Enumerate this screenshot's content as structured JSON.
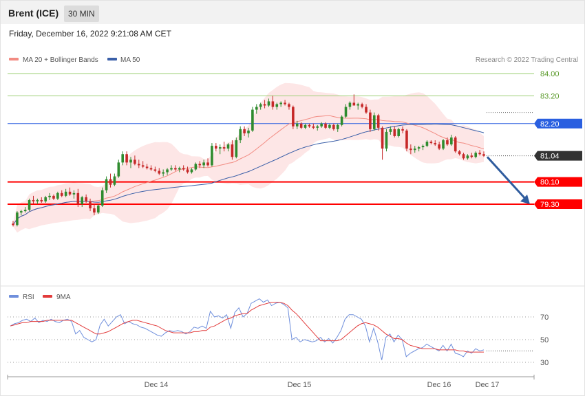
{
  "header": {
    "symbol": "Brent (ICE)",
    "timeframe": "30 MIN",
    "datetime": "Friday, December 16, 2022 9:21:08 AM CET"
  },
  "legend": {
    "ma20_bb": "MA 20 + Bollinger Bands",
    "ma50": "MA 50",
    "credit": "Research © 2022 Trading Central"
  },
  "rsi_legend": {
    "rsi": "RSI",
    "ma9": "9MA"
  },
  "colors": {
    "ma20": "#f28b82",
    "ma50": "#3a5fa8",
    "bb_fill": "#fde2e2",
    "up_candle": "#2e8b2e",
    "down_candle": "#c62828",
    "resistance_green": "#9bcf73",
    "pivot_blue": "#2a5fe0",
    "support_red": "#ff0000",
    "last_price": "#333333",
    "arrow": "#2f5c9e",
    "rsi": "#6f8fdc",
    "rsi_ma": "#e23b3b"
  },
  "chart_data": [
    {
      "type": "candlestick",
      "title": "",
      "ylim": [
        77.2,
        84.2
      ],
      "x_ticks": [
        "Dec 14",
        "Dec 15",
        "Dec 16",
        "Dec 17"
      ],
      "levels": [
        {
          "value": 84.0,
          "label": "84.00",
          "kind": "resistance"
        },
        {
          "value": 83.2,
          "label": "83.20",
          "kind": "resistance"
        },
        {
          "value": 82.2,
          "label": "82.20",
          "kind": "pivot"
        },
        {
          "value": 81.04,
          "label": "81.04",
          "kind": "last"
        },
        {
          "value": 80.1,
          "label": "80.10",
          "kind": "support"
        },
        {
          "value": 79.3,
          "label": "79.30",
          "kind": "support"
        }
      ],
      "forecast_arrow": {
        "from": 81.0,
        "to": 79.3,
        "direction": "down"
      },
      "ohlc": [
        [
          78.6,
          78.7,
          78.5,
          78.55
        ],
        [
          78.55,
          79.05,
          78.5,
          79.0
        ],
        [
          79.0,
          79.1,
          78.9,
          79.05
        ],
        [
          79.05,
          79.2,
          79.0,
          79.1
        ],
        [
          79.1,
          79.5,
          79.05,
          79.45
        ],
        [
          79.45,
          79.6,
          79.3,
          79.4
        ],
        [
          79.4,
          79.5,
          79.3,
          79.45
        ],
        [
          79.45,
          79.55,
          79.35,
          79.4
        ],
        [
          79.4,
          79.6,
          79.35,
          79.55
        ],
        [
          79.55,
          79.7,
          79.45,
          79.6
        ],
        [
          79.6,
          79.65,
          79.45,
          79.5
        ],
        [
          79.5,
          79.75,
          79.45,
          79.7
        ],
        [
          79.7,
          79.8,
          79.55,
          79.6
        ],
        [
          79.6,
          79.85,
          79.55,
          79.75
        ],
        [
          79.75,
          79.9,
          79.6,
          79.65
        ],
        [
          79.65,
          79.8,
          79.5,
          79.7
        ],
        [
          79.7,
          79.85,
          79.2,
          79.3
        ],
        [
          79.3,
          79.6,
          79.2,
          79.55
        ],
        [
          79.55,
          79.65,
          79.35,
          79.4
        ],
        [
          79.4,
          79.5,
          79.05,
          79.15
        ],
        [
          79.15,
          79.3,
          78.9,
          79.0
        ],
        [
          79.0,
          79.3,
          78.95,
          79.25
        ],
        [
          79.25,
          79.9,
          79.2,
          79.8
        ],
        [
          79.8,
          80.3,
          79.7,
          80.2
        ],
        [
          80.2,
          80.4,
          79.9,
          80.0
        ],
        [
          80.0,
          80.4,
          79.95,
          80.3
        ],
        [
          80.3,
          80.9,
          80.25,
          80.8
        ],
        [
          80.8,
          81.2,
          80.7,
          81.1
        ],
        [
          81.1,
          81.2,
          80.7,
          80.8
        ],
        [
          80.8,
          81.0,
          80.6,
          80.9
        ],
        [
          80.9,
          81.05,
          80.7,
          80.75
        ],
        [
          80.75,
          80.9,
          80.6,
          80.7
        ],
        [
          80.7,
          80.85,
          80.6,
          80.65
        ],
        [
          80.65,
          80.75,
          80.55,
          80.6
        ],
        [
          80.6,
          80.7,
          80.5,
          80.55
        ],
        [
          80.55,
          80.65,
          80.45,
          80.5
        ],
        [
          80.5,
          80.6,
          80.35,
          80.4
        ],
        [
          80.4,
          80.55,
          80.3,
          80.45
        ],
        [
          80.45,
          80.6,
          80.35,
          80.55
        ],
        [
          80.55,
          80.7,
          80.5,
          80.6
        ],
        [
          80.6,
          80.7,
          80.5,
          80.55
        ],
        [
          80.55,
          80.65,
          80.45,
          80.6
        ],
        [
          80.6,
          80.7,
          80.5,
          80.55
        ],
        [
          80.55,
          80.65,
          80.4,
          80.45
        ],
        [
          80.45,
          80.6,
          80.4,
          80.55
        ],
        [
          80.55,
          80.8,
          80.5,
          80.75
        ],
        [
          80.75,
          80.85,
          80.6,
          80.7
        ],
        [
          80.7,
          80.9,
          80.6,
          80.8
        ],
        [
          80.8,
          80.95,
          80.65,
          80.7
        ],
        [
          80.7,
          81.5,
          80.65,
          81.4
        ],
        [
          81.4,
          81.5,
          81.2,
          81.3
        ],
        [
          81.3,
          81.45,
          81.1,
          81.35
        ],
        [
          81.35,
          81.55,
          81.2,
          81.3
        ],
        [
          81.3,
          81.5,
          81.2,
          81.45
        ],
        [
          81.45,
          81.6,
          80.9,
          81.0
        ],
        [
          81.0,
          81.7,
          80.95,
          81.6
        ],
        [
          81.6,
          82.1,
          81.5,
          82.0
        ],
        [
          82.0,
          82.1,
          81.75,
          81.85
        ],
        [
          81.85,
          82.05,
          81.7,
          81.95
        ],
        [
          81.95,
          82.8,
          81.9,
          82.7
        ],
        [
          82.7,
          82.9,
          82.55,
          82.8
        ],
        [
          82.8,
          82.95,
          82.7,
          82.9
        ],
        [
          82.9,
          83.05,
          82.75,
          82.85
        ],
        [
          82.85,
          83.1,
          82.8,
          83.0
        ],
        [
          83.0,
          83.2,
          82.7,
          82.8
        ],
        [
          82.8,
          82.95,
          82.7,
          82.9
        ],
        [
          82.9,
          83.0,
          82.8,
          82.95
        ],
        [
          82.95,
          83.05,
          82.85,
          82.9
        ],
        [
          82.9,
          82.95,
          82.7,
          82.8
        ],
        [
          82.8,
          82.85,
          82.0,
          82.1
        ],
        [
          82.1,
          82.3,
          82.0,
          82.2
        ],
        [
          82.2,
          82.25,
          82.0,
          82.05
        ],
        [
          82.05,
          82.2,
          82.0,
          82.15
        ],
        [
          82.15,
          82.2,
          82.05,
          82.1
        ],
        [
          82.1,
          82.2,
          82.0,
          82.05
        ],
        [
          82.05,
          82.15,
          81.95,
          82.1
        ],
        [
          82.1,
          82.25,
          82.05,
          82.2
        ],
        [
          82.2,
          82.25,
          82.0,
          82.05
        ],
        [
          82.05,
          82.2,
          82.0,
          82.15
        ],
        [
          82.15,
          82.2,
          81.95,
          82.0
        ],
        [
          82.0,
          82.2,
          81.9,
          82.15
        ],
        [
          82.15,
          82.5,
          82.1,
          82.45
        ],
        [
          82.45,
          82.9,
          82.4,
          82.8
        ],
        [
          82.8,
          83.0,
          82.7,
          82.95
        ],
        [
          82.95,
          83.25,
          82.85,
          82.85
        ],
        [
          82.85,
          82.95,
          82.7,
          82.9
        ],
        [
          82.9,
          82.95,
          82.75,
          82.8
        ],
        [
          82.8,
          82.9,
          82.55,
          82.6
        ],
        [
          82.6,
          82.7,
          81.9,
          82.0
        ],
        [
          82.0,
          82.6,
          81.95,
          82.5
        ],
        [
          82.5,
          82.55,
          81.95,
          82.05
        ],
        [
          82.05,
          82.1,
          80.9,
          81.3
        ],
        [
          81.3,
          82.0,
          81.2,
          81.9
        ],
        [
          81.9,
          82.1,
          81.8,
          82.0
        ],
        [
          82.0,
          82.1,
          81.7,
          81.75
        ],
        [
          81.75,
          82.05,
          81.7,
          82.0
        ],
        [
          82.0,
          82.1,
          81.85,
          81.95
        ],
        [
          81.95,
          82.0,
          81.2,
          81.3
        ],
        [
          81.3,
          81.45,
          81.1,
          81.25
        ],
        [
          81.25,
          81.4,
          81.15,
          81.3
        ],
        [
          81.3,
          81.4,
          81.2,
          81.35
        ],
        [
          81.35,
          81.45,
          81.25,
          81.4
        ],
        [
          81.4,
          81.6,
          81.35,
          81.55
        ],
        [
          81.55,
          81.6,
          81.45,
          81.5
        ],
        [
          81.5,
          81.6,
          81.4,
          81.45
        ],
        [
          81.45,
          81.55,
          81.25,
          81.3
        ],
        [
          81.3,
          81.65,
          81.25,
          81.6
        ],
        [
          81.6,
          81.7,
          81.4,
          81.45
        ],
        [
          81.45,
          81.8,
          81.4,
          81.7
        ],
        [
          81.7,
          81.75,
          81.15,
          81.2
        ],
        [
          81.2,
          81.25,
          81.05,
          81.1
        ],
        [
          81.1,
          81.15,
          80.9,
          80.95
        ],
        [
          80.95,
          81.1,
          80.9,
          81.05
        ],
        [
          81.05,
          81.15,
          80.95,
          81.0
        ],
        [
          81.0,
          81.2,
          80.95,
          81.15
        ],
        [
          81.15,
          81.25,
          81.05,
          81.1
        ],
        [
          81.1,
          81.2,
          81.0,
          81.04
        ]
      ]
    },
    {
      "type": "line",
      "title": "",
      "ylim": [
        20,
        85
      ],
      "y_ticks": [
        70,
        50,
        30
      ],
      "series": [
        {
          "name": "RSI",
          "values": [
            62,
            64,
            65,
            67,
            68,
            66,
            69,
            65,
            67,
            66,
            68,
            66,
            65,
            67,
            68,
            66,
            55,
            58,
            52,
            50,
            48,
            50,
            63,
            68,
            62,
            66,
            70,
            72,
            64,
            66,
            64,
            63,
            61,
            60,
            58,
            56,
            54,
            53,
            56,
            58,
            57,
            58,
            57,
            55,
            57,
            61,
            60,
            62,
            60,
            75,
            70,
            71,
            69,
            72,
            60,
            74,
            78,
            70,
            73,
            82,
            84,
            86,
            83,
            85,
            80,
            82,
            83,
            81,
            78,
            50,
            52,
            48,
            50,
            49,
            48,
            49,
            52,
            48,
            51,
            47,
            52,
            58,
            68,
            72,
            72,
            70,
            68,
            62,
            48,
            60,
            48,
            32,
            52,
            55,
            48,
            54,
            50,
            35,
            38,
            40,
            42,
            43,
            46,
            44,
            42,
            40,
            45,
            40,
            46,
            38,
            37,
            35,
            40,
            38,
            42,
            40,
            41
          ]
        },
        {
          "name": "9MA",
          "values": [
            62,
            63,
            64,
            65,
            65,
            66,
            66,
            66,
            66,
            67,
            67,
            67,
            67,
            67,
            67,
            67,
            65,
            63,
            61,
            59,
            57,
            55,
            55,
            56,
            57,
            59,
            61,
            63,
            65,
            66,
            67,
            67,
            66,
            65,
            64,
            63,
            62,
            60,
            58,
            57,
            56,
            56,
            56,
            56,
            56,
            57,
            57,
            58,
            58,
            61,
            62,
            64,
            66,
            68,
            69,
            71,
            72,
            73,
            73,
            76,
            78,
            80,
            81,
            82,
            83,
            83,
            83,
            82,
            80,
            76,
            73,
            69,
            65,
            61,
            57,
            53,
            49,
            49,
            49,
            49,
            49,
            50,
            53,
            56,
            59,
            62,
            64,
            65,
            64,
            63,
            61,
            58,
            55,
            53,
            51,
            51,
            50,
            47,
            45,
            44,
            43,
            42,
            42,
            42,
            42,
            41,
            41,
            41,
            41,
            41,
            40,
            40,
            39,
            39,
            39,
            39,
            39
          ]
        }
      ]
    }
  ]
}
